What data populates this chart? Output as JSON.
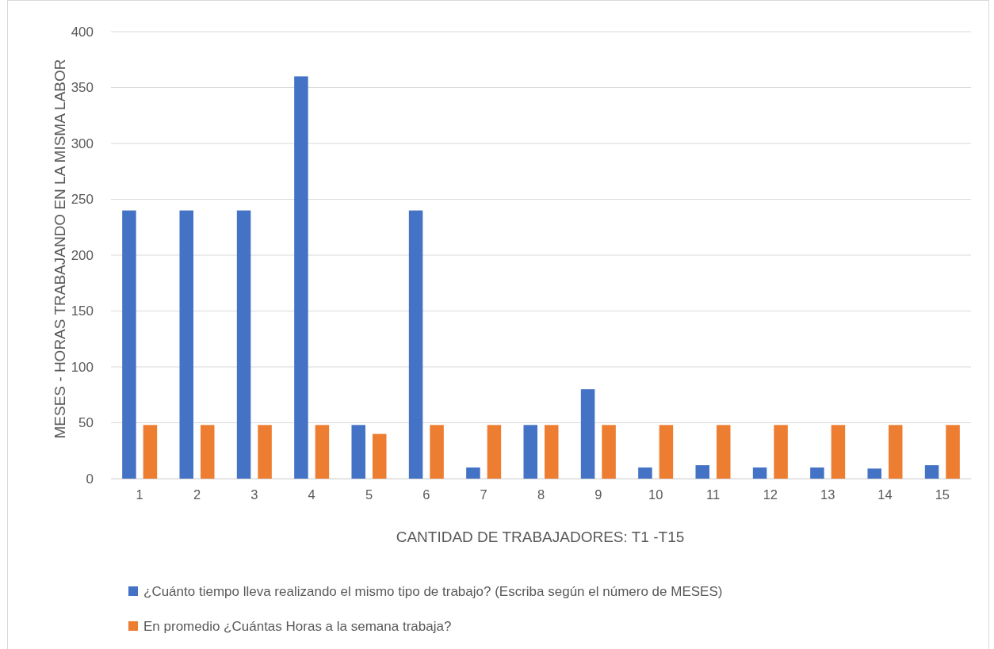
{
  "chart_data": {
    "type": "bar",
    "xlabel": "CANTIDAD DE TRABAJADORES:  T1 -T15",
    "ylabel": "MESES - HORAS  TRABAJANDO EN LA MISMA LABOR",
    "categories": [
      "1",
      "2",
      "3",
      "4",
      "5",
      "6",
      "7",
      "8",
      "9",
      "10",
      "11",
      "12",
      "13",
      "14",
      "15"
    ],
    "series": [
      {
        "name": "¿Cuánto tiempo lleva realizando el mismo tipo de trabajo? (Escriba según el número de MESES)",
        "color": "#4472c4",
        "values": [
          240,
          240,
          240,
          360,
          48,
          240,
          10,
          48,
          80,
          10,
          12,
          10,
          10,
          9,
          12
        ]
      },
      {
        "name": "En promedio ¿Cuántas Horas a la semana trabaja?",
        "color": "#ed7d31",
        "values": [
          48,
          48,
          48,
          48,
          40,
          48,
          48,
          48,
          48,
          48,
          48,
          48,
          48,
          48,
          48
        ]
      }
    ],
    "ylim": [
      0,
      400
    ],
    "yticks": [
      0,
      50,
      100,
      150,
      200,
      250,
      300,
      350,
      400
    ],
    "grid": "y",
    "legend": "bottom"
  }
}
